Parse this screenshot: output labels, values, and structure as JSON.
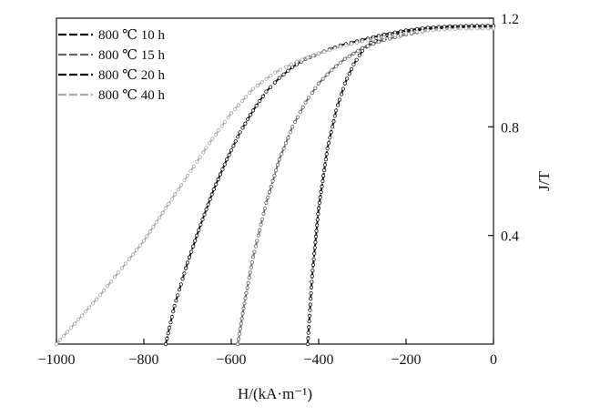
{
  "chart_data": {
    "type": "line",
    "xlabel": "H/(kA·m⁻¹)",
    "ylabel": "J/T",
    "xlim": [
      -1000,
      0
    ],
    "ylim": [
      0,
      1.2
    ],
    "xticks": [
      -1000,
      -800,
      -600,
      -400,
      -200,
      0
    ],
    "xtick_labels": [
      "−1000",
      "−800",
      "−600",
      "−400",
      "−200",
      "0"
    ],
    "yticks": [
      0.4,
      0.8,
      1.2
    ],
    "ytick_labels": [
      "0.4",
      "0.8",
      "1.2"
    ],
    "y_axis_side": "right",
    "grid": false,
    "legend_position": "top-left",
    "series": [
      {
        "name": "800 ℃ 10 h",
        "color": "#111111",
        "dash": "long-dash",
        "marker": "small-dot",
        "x": [
          -425,
          -415,
          -400,
          -380,
          -360,
          -340,
          -320,
          -300,
          -280,
          -250,
          -200,
          -150,
          -100,
          -50,
          0
        ],
        "y": [
          0.0,
          0.25,
          0.5,
          0.72,
          0.86,
          0.96,
          1.03,
          1.08,
          1.11,
          1.13,
          1.15,
          1.16,
          1.165,
          1.168,
          1.168
        ]
      },
      {
        "name": "800 ℃ 15 h",
        "color": "#666666",
        "dash": "long-dash",
        "marker": "small-dot",
        "x": [
          -585,
          -570,
          -550,
          -520,
          -490,
          -460,
          -430,
          -400,
          -370,
          -340,
          -300,
          -250,
          -200,
          -150,
          -100,
          -50,
          0
        ],
        "y": [
          0.0,
          0.15,
          0.32,
          0.52,
          0.68,
          0.8,
          0.89,
          0.96,
          1.01,
          1.05,
          1.09,
          1.12,
          1.14,
          1.155,
          1.162,
          1.165,
          1.165
        ]
      },
      {
        "name": "800 ℃ 20 h",
        "color": "#111111",
        "dash": "long-dash",
        "marker": "small-dot",
        "x": [
          -750,
          -730,
          -700,
          -670,
          -640,
          -610,
          -580,
          -550,
          -520,
          -490,
          -460,
          -430,
          -400,
          -350,
          -300,
          -250,
          -200,
          -150,
          -100,
          -50,
          0
        ],
        "y": [
          0.0,
          0.14,
          0.3,
          0.44,
          0.57,
          0.68,
          0.78,
          0.86,
          0.93,
          0.98,
          1.02,
          1.05,
          1.07,
          1.1,
          1.12,
          1.14,
          1.155,
          1.165,
          1.17,
          1.172,
          1.172
        ]
      },
      {
        "name": "800 ℃ 40 h",
        "color": "#aaaaaa",
        "dash": "long-dash",
        "marker": "small-dot",
        "x": [
          -1000,
          -950,
          -900,
          -850,
          -800,
          -750,
          -700,
          -650,
          -600,
          -550,
          -500,
          -450,
          -400,
          -350,
          -300,
          -250,
          -200,
          -150,
          -100,
          -50,
          0
        ],
        "y": [
          0.0,
          0.09,
          0.18,
          0.28,
          0.38,
          0.5,
          0.62,
          0.74,
          0.85,
          0.94,
          1.0,
          1.04,
          1.07,
          1.095,
          1.115,
          1.13,
          1.145,
          1.155,
          1.16,
          1.162,
          1.162
        ]
      }
    ]
  }
}
